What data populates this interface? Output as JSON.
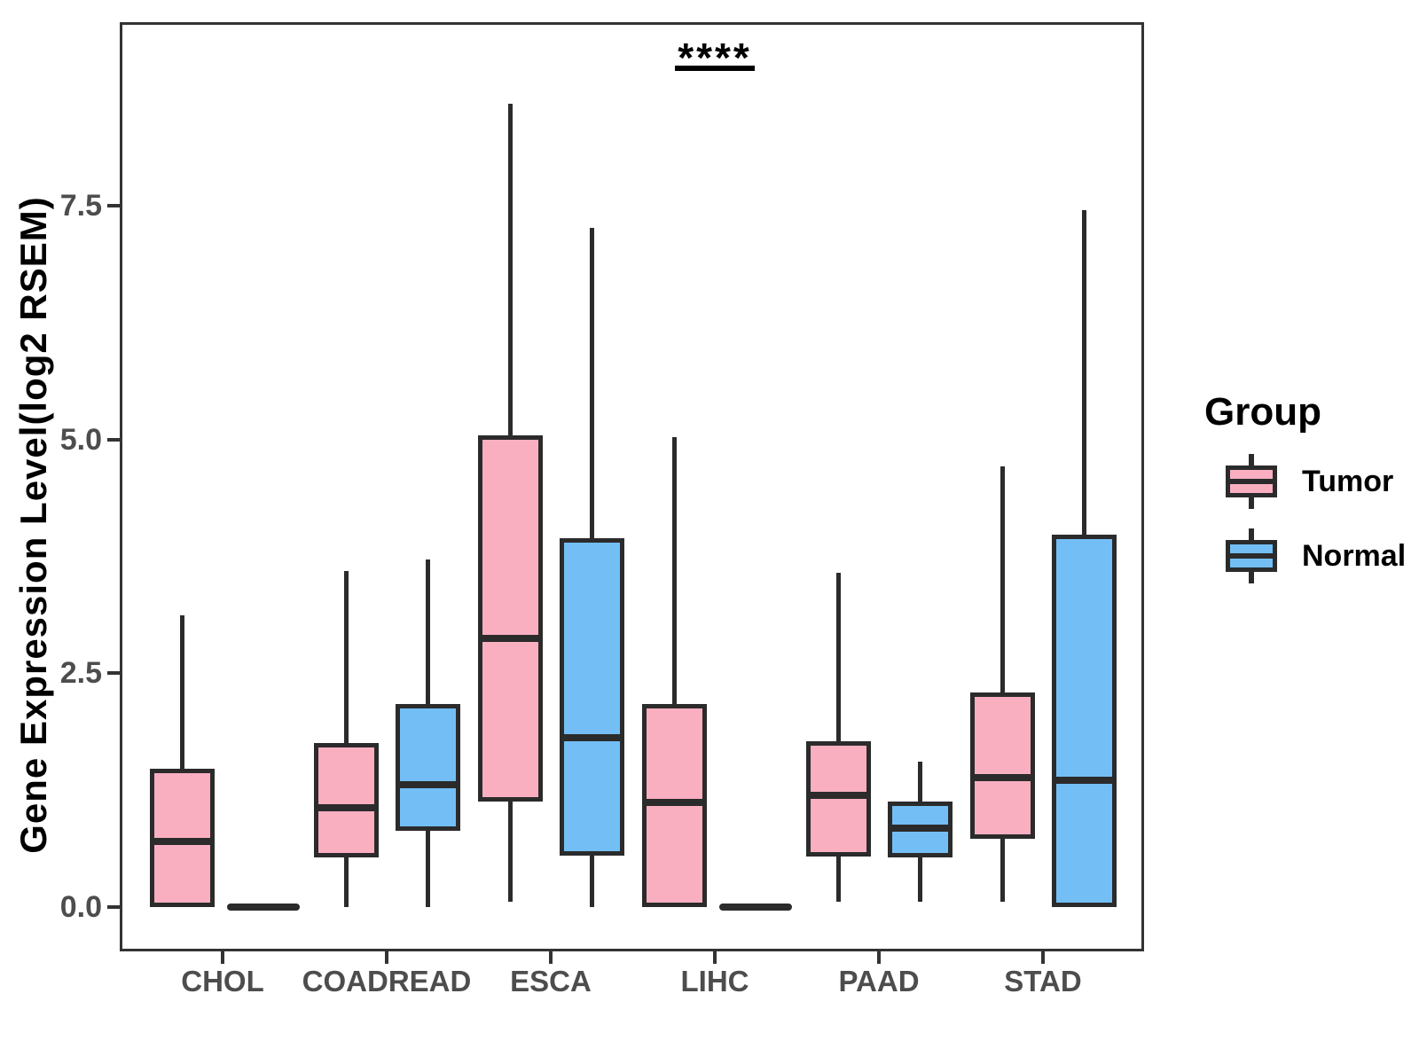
{
  "figure": {
    "y_axis_title": "Gene Expression Level(log2 RSEM)",
    "legend": {
      "title": "Group",
      "items": [
        {
          "label": "Tumor",
          "color": "#FAAFC1"
        },
        {
          "label": "Normal",
          "color": "#73BFF5"
        }
      ]
    },
    "colors": {
      "tumor": "#FAAFC1",
      "normal": "#73BFF5",
      "box_border": "#2b2b2b",
      "panel_border": "#333333",
      "tick_text": "#4d4d4d"
    }
  },
  "chart_data": {
    "type": "boxplot",
    "title": "",
    "xlabel": "",
    "ylabel": "Gene Expression Level(log2 RSEM)",
    "categories": [
      "CHOL",
      "COADREAD",
      "ESCA",
      "LIHC",
      "PAAD",
      "STAD"
    ],
    "y_ticks": {
      "values": [
        0.0,
        2.5,
        5.0,
        7.5
      ],
      "labels": [
        "0.0",
        "2.5",
        "5.0",
        "7.5"
      ]
    },
    "ylim": [
      -0.45,
      9.44
    ],
    "grid": false,
    "legend_position": "right",
    "series": [
      {
        "name": "Tumor",
        "color": "#FAAFC1",
        "boxes": [
          {
            "category": "CHOL",
            "low": 0,
            "q1": 0,
            "median": 0.7,
            "q3": 1.48,
            "high": 3.12
          },
          {
            "category": "COADREAD",
            "low": 0,
            "q1": 0.53,
            "median": 1.06,
            "q3": 1.75,
            "high": 3.59
          },
          {
            "category": "ESCA",
            "low": 0.05,
            "q1": 1.13,
            "median": 2.87,
            "q3": 5.05,
            "high": 8.6
          },
          {
            "category": "LIHC",
            "low": 0,
            "q1": 0,
            "median": 1.12,
            "q3": 2.17,
            "high": 5.03
          },
          {
            "category": "PAAD",
            "low": 0.05,
            "q1": 0.54,
            "median": 1.19,
            "q3": 1.77,
            "high": 3.57
          },
          {
            "category": "STAD",
            "low": 0.05,
            "q1": 0.73,
            "median": 1.38,
            "q3": 2.29,
            "high": 4.71
          }
        ]
      },
      {
        "name": "Normal",
        "color": "#73BFF5",
        "boxes": [
          {
            "category": "CHOL",
            "low": 0,
            "q1": 0,
            "median": 0,
            "q3": 0,
            "high": 0
          },
          {
            "category": "COADREAD",
            "low": 0,
            "q1": 0.81,
            "median": 1.31,
            "q3": 2.17,
            "high": 3.72
          },
          {
            "category": "ESCA",
            "low": 0,
            "q1": 0.55,
            "median": 1.81,
            "q3": 3.94,
            "high": 7.27
          },
          {
            "category": "LIHC",
            "low": 0,
            "q1": 0,
            "median": 0,
            "q3": 0,
            "high": 0
          },
          {
            "category": "PAAD",
            "low": 0.05,
            "q1": 0.53,
            "median": 0.84,
            "q3": 1.13,
            "high": 1.55
          },
          {
            "category": "STAD",
            "low": 0,
            "q1": 0,
            "median": 1.35,
            "q3": 3.98,
            "high": 7.46
          }
        ]
      }
    ],
    "significance": {
      "text": "****",
      "category": "LIHC"
    }
  }
}
